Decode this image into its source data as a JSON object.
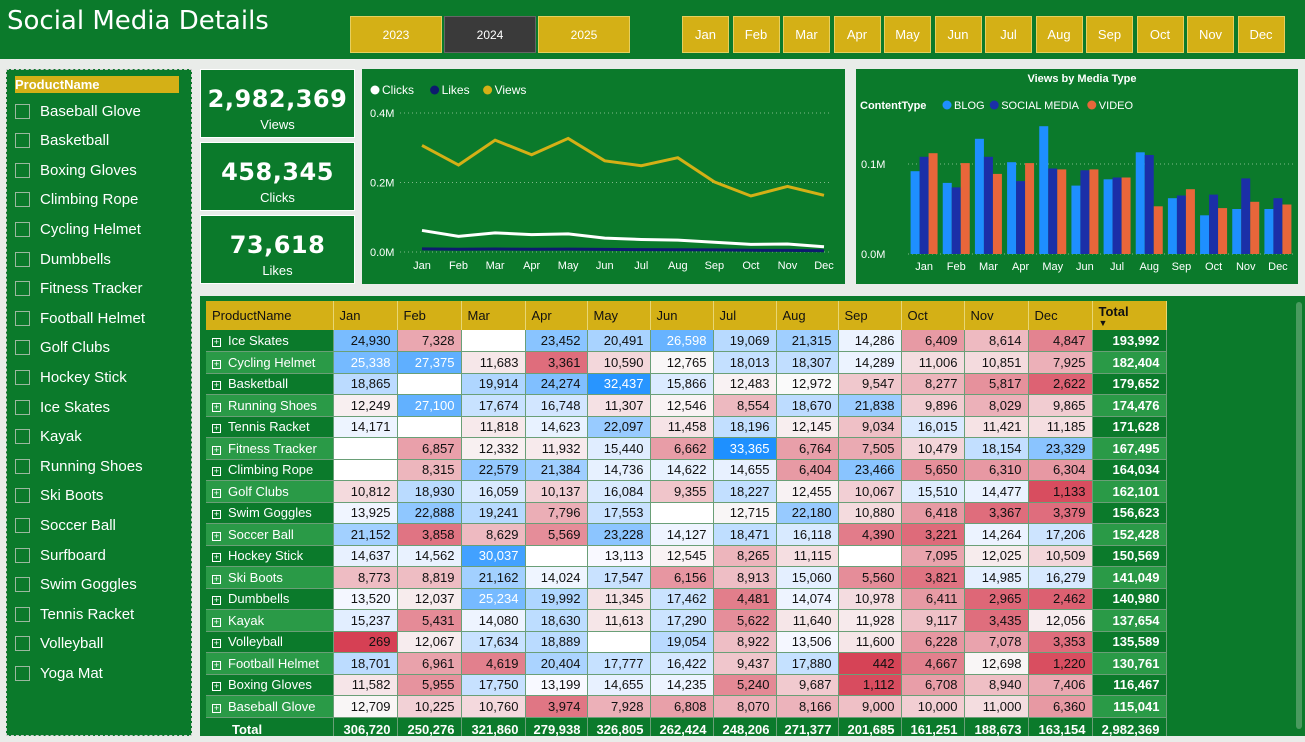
{
  "title": "Social Media Details",
  "years": [
    {
      "label": "2023",
      "selected": false
    },
    {
      "label": "2024",
      "selected": true
    },
    {
      "label": "2025",
      "selected": false
    }
  ],
  "months": [
    "Jan",
    "Feb",
    "Mar",
    "Apr",
    "May",
    "Jun",
    "Jul",
    "Aug",
    "Sep",
    "Oct",
    "Nov",
    "Dec"
  ],
  "slicer": {
    "header": "ProductName",
    "items": [
      "Baseball Glove",
      "Basketball",
      "Boxing Gloves",
      "Climbing Rope",
      "Cycling Helmet",
      "Dumbbells",
      "Fitness Tracker",
      "Football Helmet",
      "Golf Clubs",
      "Hockey Stick",
      "Ice Skates",
      "Kayak",
      "Running Shoes",
      "Ski Boots",
      "Soccer Ball",
      "Surfboard",
      "Swim Goggles",
      "Tennis Racket",
      "Volleyball",
      "Yoga Mat"
    ]
  },
  "kpis": [
    {
      "value": "2,982,369",
      "label": "Views"
    },
    {
      "value": "458,345",
      "label": "Clicks"
    },
    {
      "value": "73,618",
      "label": "Likes"
    }
  ],
  "colors": {
    "green": "#0b7a2b",
    "gold": "#d4b016",
    "clicks": "#ffffff",
    "likes": "#0d1b6e",
    "views": "#d4b016",
    "blog": "#1e8fff",
    "social": "#1b2fa8",
    "video": "#e8663a"
  },
  "chart_data": [
    {
      "type": "line",
      "x": [
        "Jan",
        "Feb",
        "Mar",
        "Apr",
        "May",
        "Jun",
        "Jul",
        "Aug",
        "Sep",
        "Oct",
        "Nov",
        "Dec"
      ],
      "yticks": [
        "0.4M",
        "0.2M",
        "0.0M"
      ],
      "ylim": [
        0,
        400000
      ],
      "series": [
        {
          "name": "Clicks",
          "values": [
            62000,
            45000,
            55000,
            50000,
            52000,
            40000,
            36000,
            34000,
            28000,
            22000,
            23000,
            15000
          ]
        },
        {
          "name": "Likes",
          "values": [
            9000,
            8000,
            8500,
            8000,
            8200,
            7500,
            6800,
            6500,
            6000,
            5000,
            4500,
            3500
          ]
        },
        {
          "name": "Views",
          "values": [
            306720,
            250276,
            321860,
            279938,
            326805,
            262424,
            248206,
            271377,
            201685,
            161251,
            188673,
            163154
          ]
        }
      ],
      "legend": "top-left"
    },
    {
      "type": "bar",
      "title": "Views by Media Type",
      "legend_title": "ContentType",
      "categories": [
        "Jan",
        "Feb",
        "Mar",
        "Apr",
        "May",
        "Jun",
        "Jul",
        "Aug",
        "Sep",
        "Oct",
        "Nov",
        "Dec"
      ],
      "yticks": [
        "0.1M",
        "0.0M"
      ],
      "ylim": [
        0,
        150000
      ],
      "series": [
        {
          "name": "BLOG",
          "values": [
            92000,
            79000,
            128000,
            102000,
            142000,
            76000,
            83000,
            113000,
            62000,
            43000,
            50000,
            50000
          ]
        },
        {
          "name": "SOCIAL MEDIA",
          "values": [
            108000,
            74000,
            108000,
            81000,
            95000,
            93000,
            85000,
            110000,
            65000,
            66000,
            84000,
            62000
          ]
        },
        {
          "name": "VIDEO",
          "values": [
            112000,
            101000,
            89000,
            101000,
            94000,
            94000,
            85000,
            53000,
            72000,
            51000,
            58000,
            55000
          ]
        }
      ],
      "legend": "top-left"
    }
  ],
  "table": {
    "headers": [
      "ProductName",
      "Jan",
      "Feb",
      "Mar",
      "Apr",
      "May",
      "Jun",
      "Jul",
      "Aug",
      "Sep",
      "Oct",
      "Nov",
      "Dec",
      "Total"
    ],
    "rows": [
      {
        "name": "Ice Skates",
        "v": [
          "24,930",
          "7,328",
          "",
          "23,452",
          "20,491",
          "26,598",
          "19,069",
          "21,315",
          "14,286",
          "6,409",
          "8,614",
          "4,847"
        ],
        "total": "193,992"
      },
      {
        "name": "Cycling Helmet",
        "v": [
          "25,338",
          "27,375",
          "11,683",
          "3,361",
          "10,590",
          "12,765",
          "18,013",
          "18,307",
          "14,289",
          "11,006",
          "10,851",
          "7,925"
        ],
        "total": "182,404"
      },
      {
        "name": "Basketball",
        "v": [
          "18,865",
          "",
          "19,914",
          "24,274",
          "32,437",
          "15,866",
          "12,483",
          "12,972",
          "9,547",
          "8,277",
          "5,817",
          "2,622"
        ],
        "total": "179,652"
      },
      {
        "name": "Running Shoes",
        "v": [
          "12,249",
          "27,100",
          "17,674",
          "16,748",
          "11,307",
          "12,546",
          "8,554",
          "18,670",
          "21,838",
          "9,896",
          "8,029",
          "9,865"
        ],
        "total": "174,476"
      },
      {
        "name": "Tennis Racket",
        "v": [
          "14,171",
          "",
          "11,818",
          "14,623",
          "22,097",
          "11,458",
          "18,196",
          "12,145",
          "9,034",
          "16,015",
          "11,421",
          "11,185"
        ],
        "total": "171,628"
      },
      {
        "name": "Fitness Tracker",
        "v": [
          "",
          "6,857",
          "12,332",
          "11,932",
          "15,440",
          "6,662",
          "33,365",
          "6,764",
          "7,505",
          "10,479",
          "18,154",
          "23,329"
        ],
        "total": "167,495"
      },
      {
        "name": "Climbing Rope",
        "v": [
          "",
          "8,315",
          "22,579",
          "21,384",
          "14,736",
          "14,622",
          "14,655",
          "6,404",
          "23,466",
          "5,650",
          "6,310",
          "6,304"
        ],
        "total": "164,034"
      },
      {
        "name": "Golf Clubs",
        "v": [
          "10,812",
          "18,930",
          "16,059",
          "10,137",
          "16,084",
          "9,355",
          "18,227",
          "12,455",
          "10,067",
          "15,510",
          "14,477",
          "1,133"
        ],
        "total": "162,101"
      },
      {
        "name": "Swim Goggles",
        "v": [
          "13,925",
          "22,888",
          "19,241",
          "7,796",
          "17,553",
          "",
          "12,715",
          "22,180",
          "10,880",
          "6,418",
          "3,367",
          "3,379"
        ],
        "total": "156,623"
      },
      {
        "name": "Soccer Ball",
        "v": [
          "21,152",
          "3,858",
          "8,629",
          "5,569",
          "23,228",
          "14,127",
          "18,471",
          "16,118",
          "4,390",
          "3,221",
          "14,264",
          "17,206"
        ],
        "total": "152,428"
      },
      {
        "name": "Hockey Stick",
        "v": [
          "14,637",
          "14,562",
          "30,037",
          "",
          "13,113",
          "12,545",
          "8,265",
          "11,115",
          "",
          "7,095",
          "12,025",
          "10,509"
        ],
        "total": "150,569"
      },
      {
        "name": "Ski Boots",
        "v": [
          "8,773",
          "8,819",
          "21,162",
          "14,024",
          "17,547",
          "6,156",
          "8,913",
          "15,060",
          "5,560",
          "3,821",
          "14,985",
          "16,279"
        ],
        "total": "141,049"
      },
      {
        "name": "Dumbbells",
        "v": [
          "13,520",
          "12,037",
          "25,234",
          "19,992",
          "11,345",
          "17,462",
          "4,481",
          "14,074",
          "10,978",
          "6,411",
          "2,965",
          "2,462"
        ],
        "total": "140,980"
      },
      {
        "name": "Kayak",
        "v": [
          "15,237",
          "5,431",
          "14,080",
          "18,630",
          "11,613",
          "17,290",
          "5,622",
          "11,640",
          "11,928",
          "9,117",
          "3,435",
          "12,056"
        ],
        "total": "137,654"
      },
      {
        "name": "Volleyball",
        "v": [
          "269",
          "12,067",
          "17,634",
          "18,889",
          "",
          "19,054",
          "8,922",
          "13,506",
          "11,600",
          "6,228",
          "7,078",
          "3,353"
        ],
        "total": "135,589"
      },
      {
        "name": "Football Helmet",
        "v": [
          "18,701",
          "6,961",
          "4,619",
          "20,404",
          "17,777",
          "16,422",
          "9,437",
          "17,880",
          "442",
          "4,667",
          "12,698",
          "1,220"
        ],
        "total": "130,761"
      },
      {
        "name": "Boxing Gloves",
        "v": [
          "11,582",
          "5,955",
          "17,750",
          "13,199",
          "14,655",
          "14,235",
          "5,240",
          "9,687",
          "1,112",
          "6,708",
          "8,940",
          "7,406"
        ],
        "total": "116,467"
      },
      {
        "name": "Baseball Glove",
        "v": [
          "12,709",
          "10,225",
          "10,760",
          "3,974",
          "7,928",
          "6,808",
          "8,070",
          "8,166",
          "9,000",
          "10,000",
          "11,000",
          "6,360"
        ],
        "total": "115,041"
      }
    ],
    "footer": {
      "label": "Total",
      "values": [
        "306,720",
        "250,276",
        "321,860",
        "279,938",
        "326,805",
        "262,424",
        "248,206",
        "271,377",
        "201,685",
        "161,251",
        "188,673",
        "163,154"
      ],
      "total": "2,982,369"
    }
  }
}
